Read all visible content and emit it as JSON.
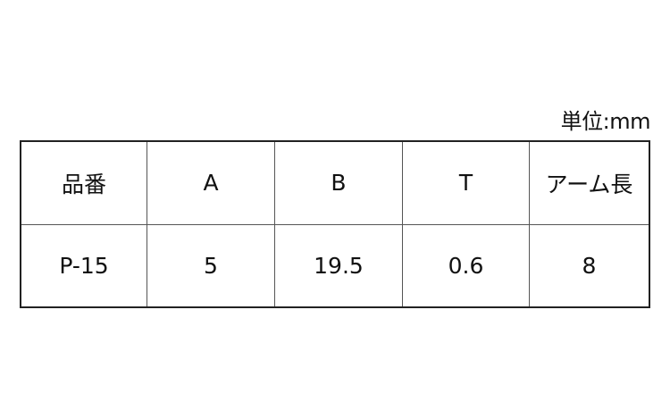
{
  "unit_label": "単位:mm",
  "table": {
    "headers": [
      "品番",
      "A",
      "B",
      "T",
      "アーム長"
    ],
    "rows": [
      [
        "P-15",
        "5",
        "19.5",
        "0.6",
        "8"
      ]
    ]
  }
}
